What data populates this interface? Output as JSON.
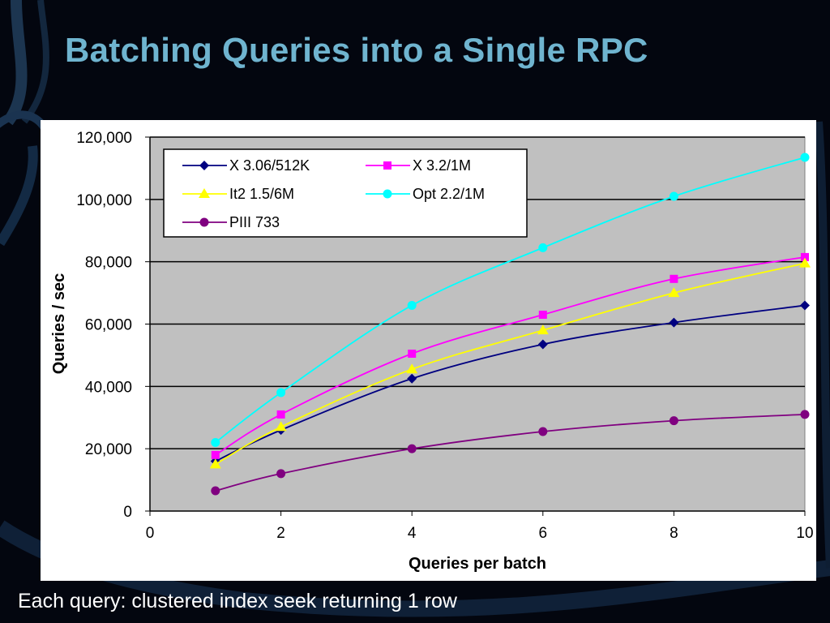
{
  "slide": {
    "title": "Batching Queries into a Single RPC",
    "footer": "Each query: clustered index seek returning 1 row"
  },
  "chart_data": {
    "type": "line",
    "title": "",
    "xlabel": "Queries per batch",
    "ylabel": "Queries / sec",
    "xlim": [
      0,
      10
    ],
    "ylim": [
      0,
      120000
    ],
    "x_ticks": [
      "0",
      "2",
      "4",
      "6",
      "8",
      "10"
    ],
    "y_ticks": [
      "0",
      "20,000",
      "40,000",
      "60,000",
      "80,000",
      "100,000",
      "120,000"
    ],
    "grid": "horizontal",
    "legend_position": "top-left",
    "x": [
      1,
      2,
      4,
      6,
      8,
      10
    ],
    "series": [
      {
        "name": "X 3.06/512K",
        "color": "#000080",
        "marker": "diamond",
        "values": [
          16000,
          26000,
          42500,
          53500,
          60500,
          66000
        ]
      },
      {
        "name": "X 3.2/1M",
        "color": "#ff00ff",
        "marker": "square",
        "values": [
          18000,
          31000,
          50500,
          63000,
          74500,
          81500
        ]
      },
      {
        "name": "It2 1.5/6M",
        "color": "#ffff00",
        "marker": "triangle",
        "values": [
          15000,
          27000,
          45500,
          58000,
          70000,
          79500
        ]
      },
      {
        "name": "Opt 2.2/1M",
        "color": "#00ffff",
        "marker": "circle",
        "values": [
          22000,
          38000,
          66000,
          84500,
          101000,
          113500
        ]
      },
      {
        "name": "PIII 733",
        "color": "#800080",
        "marker": "circle",
        "values": [
          6500,
          12000,
          20000,
          25500,
          29000,
          31000
        ]
      }
    ]
  }
}
